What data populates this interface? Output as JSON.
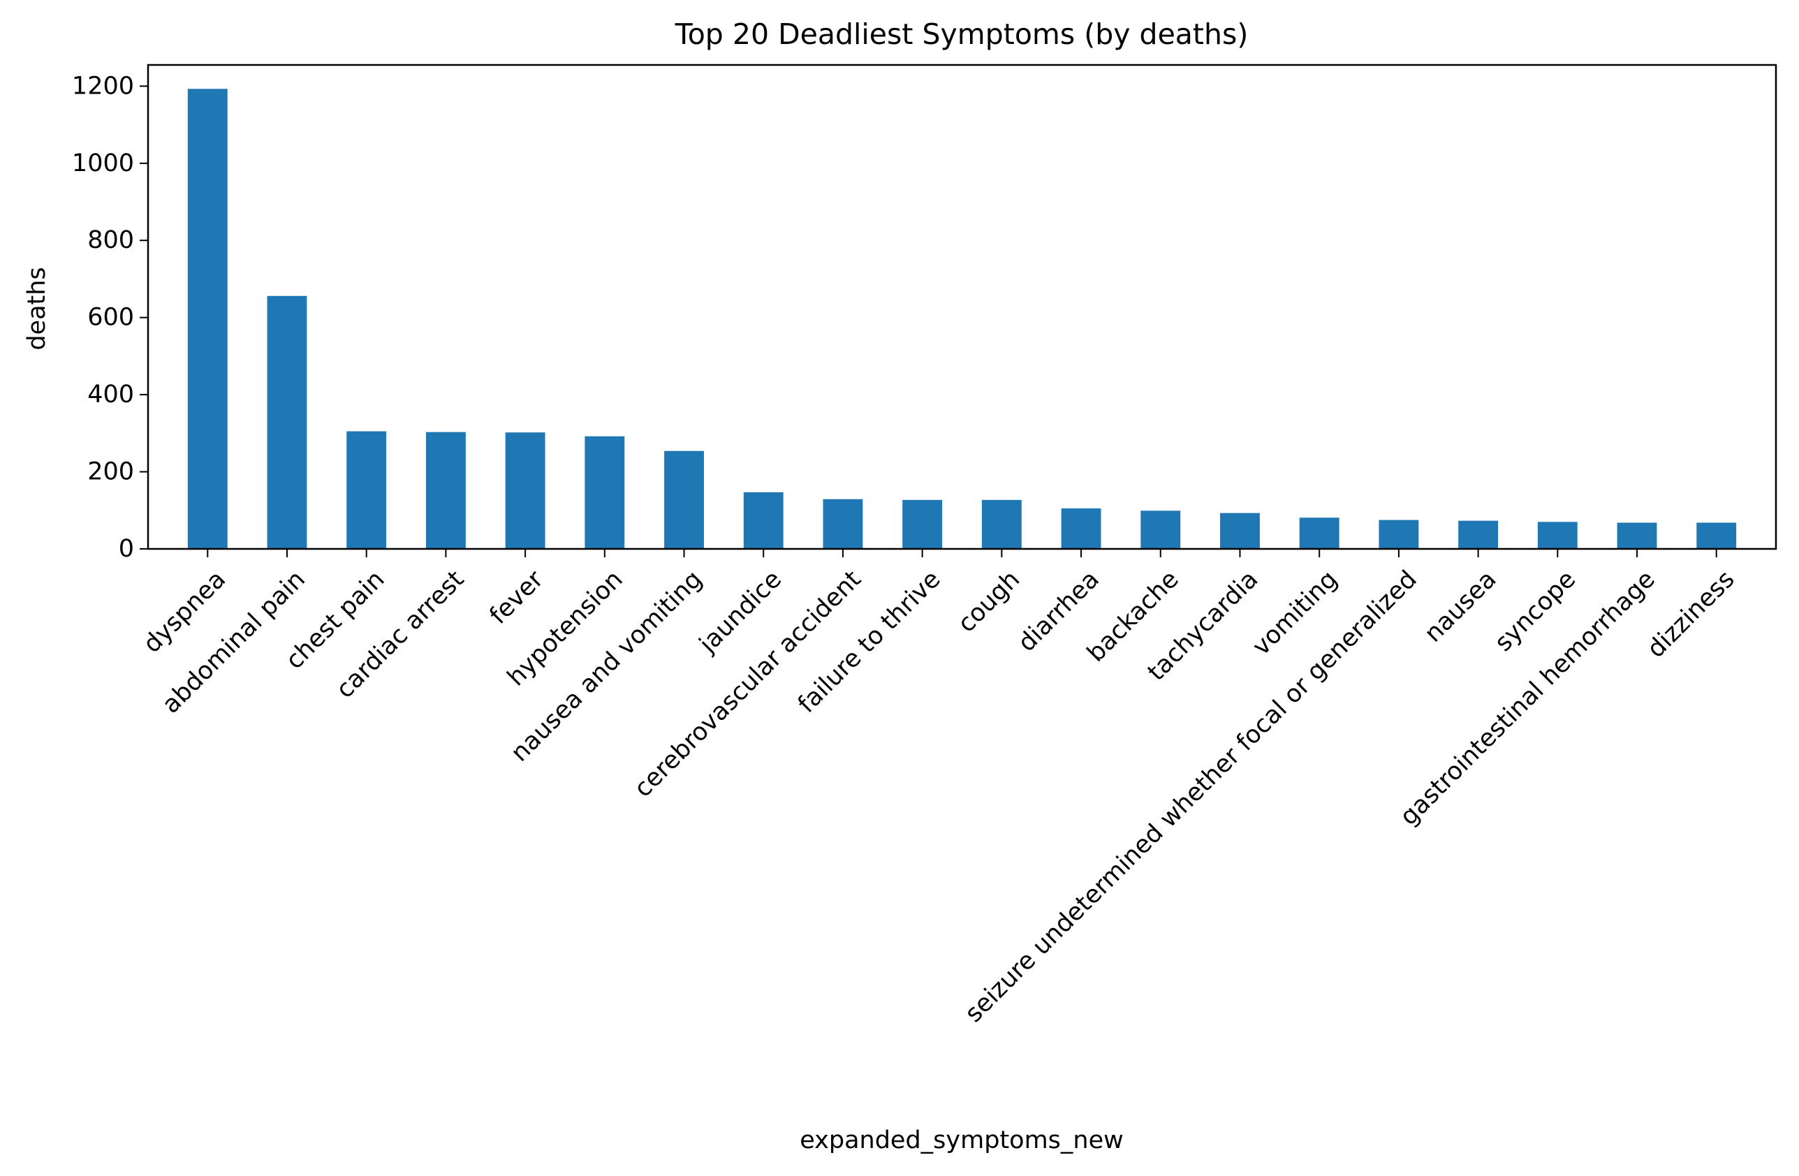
{
  "chart_data": {
    "type": "bar",
    "title": "Top 20 Deadliest Symptoms (by deaths)",
    "xlabel": "expanded_symptoms_new",
    "ylabel": "deaths",
    "categories": [
      "dyspnea",
      "abdominal pain",
      "chest pain",
      "cardiac arrest",
      "fever",
      "hypotension",
      "nausea and vomiting",
      "jaundice",
      "cerebrovascular accident",
      "failure to thrive",
      "cough",
      "diarrhea",
      "backache",
      "tachycardia",
      "vomiting",
      "seizure undetermined whether focal or generalized",
      "nausea",
      "syncope",
      "gastrointestinal hemorrhage",
      "dizziness"
    ],
    "values": [
      1193,
      656,
      305,
      303,
      302,
      292,
      254,
      147,
      129,
      127,
      127,
      105,
      99,
      93,
      81,
      75,
      73,
      70,
      68,
      68
    ],
    "ylim": [
      0,
      1255
    ],
    "yticks": [
      0,
      200,
      400,
      600,
      800,
      1000,
      1200
    ],
    "bar_color": "#1f77b4",
    "grid": false,
    "legend": "none"
  }
}
